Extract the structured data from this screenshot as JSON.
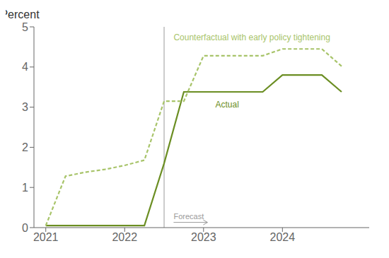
{
  "chart_data": {
    "type": "line",
    "ylabel": "Percent",
    "x": [
      2021.0,
      2021.25,
      2021.5,
      2021.75,
      2022.0,
      2022.25,
      2022.5,
      2022.75,
      2023.0,
      2023.25,
      2023.75,
      2024.0,
      2024.5,
      2024.75
    ],
    "series": [
      {
        "name": "Actual",
        "color": "#6b8e23",
        "line_style": "solid",
        "values": [
          0.05,
          0.05,
          0.05,
          0.05,
          0.05,
          0.05,
          1.6,
          3.38,
          3.38,
          3.38,
          3.38,
          3.8,
          3.8,
          3.38
        ],
        "label_x": 2023.15,
        "label_y": 3.05
      },
      {
        "name": "Counterfactual with early policy tightening",
        "color": "#a8c46a",
        "line_style": "dashed",
        "values": [
          0.05,
          1.28,
          1.38,
          1.45,
          1.55,
          1.68,
          3.15,
          3.15,
          4.28,
          4.28,
          4.28,
          4.45,
          4.45,
          4.02
        ],
        "label_x": 2022.62,
        "label_y": 4.72
      }
    ],
    "xlim": [
      2020.85,
      2025.1
    ],
    "xticks": [
      2021,
      2022,
      2023,
      2024
    ],
    "ylim": [
      0,
      5
    ],
    "yticks": [
      0,
      1,
      2,
      3,
      4,
      5
    ],
    "vlines": [
      2022.5
    ],
    "annotations": [
      {
        "text": "Forecast",
        "x": 2022.62,
        "y": 0.13,
        "arrow_to_x": 2023.05
      }
    ],
    "grid": false
  }
}
